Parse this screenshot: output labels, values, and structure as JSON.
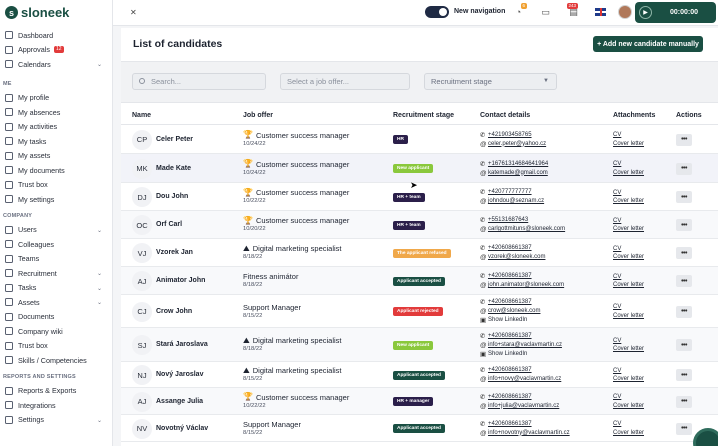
{
  "brand": {
    "name": "sloneek"
  },
  "sidebar": {
    "top_items": [
      {
        "label": "Dashboard",
        "icon": "home-icon"
      },
      {
        "label": "Approvals",
        "icon": "check-icon",
        "badge": "12"
      },
      {
        "label": "Calendars",
        "icon": "calendar-icon",
        "chevron": true
      }
    ],
    "me_section": "ME",
    "me_items": [
      {
        "label": "My profile",
        "icon": "user-icon"
      },
      {
        "label": "My absences",
        "icon": "absence-icon"
      },
      {
        "label": "My activities",
        "icon": "activity-icon"
      },
      {
        "label": "My tasks",
        "icon": "task-icon"
      },
      {
        "label": "My assets",
        "icon": "asset-icon"
      },
      {
        "label": "My documents",
        "icon": "document-icon"
      },
      {
        "label": "Trust box",
        "icon": "box-icon"
      },
      {
        "label": "My settings",
        "icon": "gear-icon"
      }
    ],
    "company_section": "COMPANY",
    "company_items": [
      {
        "label": "Users",
        "icon": "users-icon",
        "chevron": true
      },
      {
        "label": "Colleagues",
        "icon": "colleagues-icon"
      },
      {
        "label": "Teams",
        "icon": "teams-icon"
      },
      {
        "label": "Recruitment",
        "icon": "recruitment-icon",
        "chevron": true
      },
      {
        "label": "Tasks",
        "icon": "task-icon",
        "chevron": true
      },
      {
        "label": "Assets",
        "icon": "asset-icon",
        "chevron": true
      },
      {
        "label": "Documents",
        "icon": "document-icon"
      },
      {
        "label": "Company wiki",
        "icon": "wiki-icon"
      },
      {
        "label": "Trust box",
        "icon": "box-icon"
      },
      {
        "label": "Skills / Competencies",
        "icon": "skills-icon"
      }
    ],
    "reports_section": "REPORTS AND SETTINGS",
    "reports_items": [
      {
        "label": "Reports & Exports",
        "icon": "report-icon"
      },
      {
        "label": "Integrations",
        "icon": "integration-icon"
      },
      {
        "label": "Settings",
        "icon": "gear-icon",
        "chevron": true
      }
    ]
  },
  "topbar": {
    "new_navigation_label": "New navigation",
    "notifications_badge": "6",
    "inbox_badge": "243",
    "timer": "00:00:00"
  },
  "page": {
    "title": "List of candidates",
    "add_button": "+ Add new candidate manually",
    "search_placeholder": "Search...",
    "job_placeholder": "Select a job offer...",
    "stage_placeholder": "Recruitment stage"
  },
  "table": {
    "headers": {
      "name": "Name",
      "job": "Job offer",
      "stage": "Recruitment stage",
      "contact": "Contact details",
      "attachments": "Attachments",
      "actions": "Actions"
    },
    "attachment_labels": {
      "cv": "CV",
      "cover": "Cover letter"
    },
    "action_label": "•••",
    "linkedin_label": "Show LinkedIn",
    "rows": [
      {
        "initials": "CP",
        "name": "Celer Peter",
        "job_icon": "🏆",
        "job": "Customer success manager",
        "date": "10/24/22",
        "stage": "HR",
        "stage_color": "#2b1f4a",
        "phone": "+421903458765",
        "email": "celer.peter@yahoo.cz",
        "linkedin": false,
        "h": 29
      },
      {
        "initials": "MK",
        "name": "Made Kate",
        "job_icon": "🏆",
        "job": "Customer success manager",
        "date": "10/24/22",
        "stage": "New applicant",
        "stage_color": "#8ac83c",
        "phone": "+16761314684641964",
        "email": "katemade@gmail.com",
        "linkedin": false,
        "h": 29
      },
      {
        "initials": "DJ",
        "name": "Dou John",
        "job_icon": "🏆",
        "job": "Customer success manager",
        "date": "10/22/22",
        "stage": "HR + team",
        "stage_color": "#2b1f4a",
        "phone": "+420777777777",
        "email": "johndou@seznam.cz",
        "linkedin": false,
        "h": 28
      },
      {
        "initials": "OC",
        "name": "Orf Carl",
        "job_icon": "🏆",
        "job": "Customer success manager",
        "date": "10/20/22",
        "stage": "HR + team",
        "stage_color": "#2b1f4a",
        "phone": "+55131687643",
        "email": "carlgottmituns@sloneek.com",
        "linkedin": false,
        "h": 28
      },
      {
        "initials": "VJ",
        "name": "Vzorek Jan",
        "job_icon": "⛰",
        "job": "Digital marketing specialist",
        "date": "8/18/22",
        "stage": "The applicant refused",
        "stage_color": "#f0a84a",
        "phone": "+420608661387",
        "email": "vzorek@sloneek.com",
        "linkedin": false,
        "h": 28
      },
      {
        "initials": "AJ",
        "name": "Animator John",
        "job_icon": "",
        "job": "Fitness animátor",
        "date": "8/18/22",
        "stage": "Applicant accepted",
        "stage_color": "#1a4f43",
        "phone": "+420608661387",
        "email": "john.animator@sloneek.com",
        "linkedin": false,
        "h": 28
      },
      {
        "initials": "CJ",
        "name": "Crow John",
        "job_icon": "",
        "job": "Support Manager",
        "date": "8/15/22",
        "stage": "Applicant rejected",
        "stage_color": "#e23b3b",
        "phone": "+420608661387",
        "email": "crow@sloneek.com",
        "linkedin": true,
        "h": 33
      },
      {
        "initials": "SJ",
        "name": "Stará Jaroslava",
        "job_icon": "⛰",
        "job": "Digital marketing specialist",
        "date": "8/18/22",
        "stage": "New applicant",
        "stage_color": "#8ac83c",
        "phone": "+420608661387",
        "email": "info+stara@vaclavmartin.cz",
        "linkedin": true,
        "h": 34
      },
      {
        "initials": "NJ",
        "name": "Nový Jaroslav",
        "job_icon": "⛰",
        "job": "Digital marketing specialist",
        "date": "8/15/22",
        "stage": "Applicant accepted",
        "stage_color": "#1a4f43",
        "phone": "+420608661387",
        "email": "info+novy@vaclavmartin.cz",
        "linkedin": false,
        "h": 26
      },
      {
        "initials": "AJ",
        "name": "Assange Julia",
        "job_icon": "🏆",
        "job": "Customer success manager",
        "date": "10/22/22",
        "stage": "HR + manager",
        "stage_color": "#2b1f4a",
        "phone": "+420608661387",
        "email": "info+julia@vaclavmartin.cz",
        "linkedin": false,
        "h": 27
      },
      {
        "initials": "NV",
        "name": "Novotný Václav",
        "job_icon": "",
        "job": "Support Manager",
        "date": "8/15/22",
        "stage": "Applicant accepted",
        "stage_color": "#1a4f43",
        "phone": "+420608661387",
        "email": "info+novotny@vaclavmartin.cz",
        "linkedin": false,
        "h": 27
      }
    ]
  }
}
